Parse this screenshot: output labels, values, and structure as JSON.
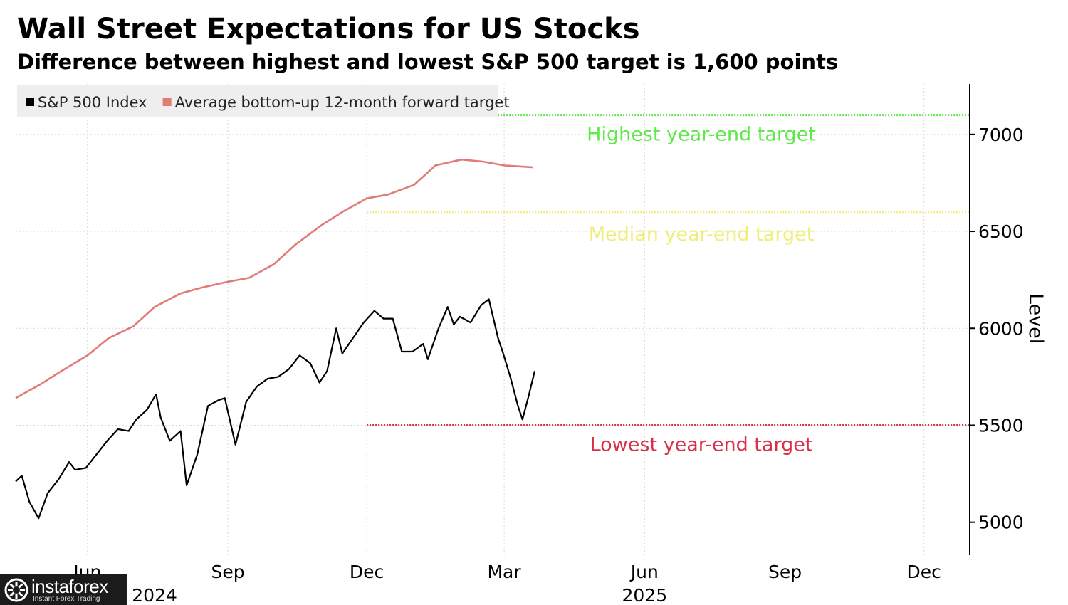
{
  "title": "Wall Street Expectations for US Stocks",
  "subtitle": "Difference between highest and lowest S&P 500 target is 1,600 points",
  "logo": {
    "name": "instaforex",
    "tagline": "Instant Forex Trading"
  },
  "chart_data": {
    "type": "line",
    "ylabel": "Level",
    "ylim": [
      4830,
      7260
    ],
    "y_ticks": [
      5000,
      5500,
      6000,
      6500,
      7000
    ],
    "x_ticks": [
      {
        "label": "Jun",
        "date": "2024-06-01"
      },
      {
        "label": "Sep",
        "date": "2024-09-01"
      },
      {
        "label": "Dec",
        "date": "2024-12-01"
      },
      {
        "label": "Mar",
        "date": "2025-03-01"
      },
      {
        "label": "Jun",
        "date": "2025-06-01"
      },
      {
        "label": "Sep",
        "date": "2025-09-01"
      },
      {
        "label": "Dec",
        "date": "2025-12-01"
      }
    ],
    "year_labels": [
      {
        "label": "2024",
        "date": "2024-07-15"
      },
      {
        "label": "2025",
        "date": "2025-06-01"
      }
    ],
    "xlim": [
      "2024-04-15",
      "2025-12-31"
    ],
    "grid": true,
    "legend_position": "top-left",
    "colors": {
      "sp500": "#000000",
      "target": "#e07b78",
      "highest": "#5ee84a",
      "median": "#f0ee7a",
      "lowest": "#d9304a"
    },
    "series": [
      {
        "name": "S&P 500 Index",
        "x": [
          "2024-04-15",
          "2024-04-19",
          "2024-04-24",
          "2024-04-30",
          "2024-05-06",
          "2024-05-13",
          "2024-05-20",
          "2024-05-24",
          "2024-05-31",
          "2024-06-07",
          "2024-06-14",
          "2024-06-21",
          "2024-06-28",
          "2024-07-03",
          "2024-07-10",
          "2024-07-16",
          "2024-07-19",
          "2024-07-25",
          "2024-08-01",
          "2024-08-05",
          "2024-08-12",
          "2024-08-19",
          "2024-08-26",
          "2024-08-30",
          "2024-09-06",
          "2024-09-13",
          "2024-09-20",
          "2024-09-27",
          "2024-10-04",
          "2024-10-11",
          "2024-10-18",
          "2024-10-25",
          "2024-10-31",
          "2024-11-05",
          "2024-11-11",
          "2024-11-15",
          "2024-11-22",
          "2024-11-29",
          "2024-12-06",
          "2024-12-12",
          "2024-12-18",
          "2024-12-24",
          "2024-12-31",
          "2025-01-07",
          "2025-01-10",
          "2025-01-17",
          "2025-01-23",
          "2025-01-27",
          "2025-01-31",
          "2025-02-07",
          "2025-02-14",
          "2025-02-19",
          "2025-02-25",
          "2025-02-28",
          "2025-03-05",
          "2025-03-10",
          "2025-03-13",
          "2025-03-17",
          "2025-03-21"
        ],
        "values": [
          5210,
          5240,
          5105,
          5020,
          5150,
          5220,
          5310,
          5270,
          5280,
          5350,
          5420,
          5480,
          5470,
          5530,
          5580,
          5660,
          5540,
          5420,
          5470,
          5190,
          5350,
          5600,
          5630,
          5640,
          5400,
          5620,
          5700,
          5740,
          5750,
          5790,
          5860,
          5820,
          5720,
          5780,
          6000,
          5870,
          5950,
          6030,
          6090,
          6050,
          6050,
          5880,
          5880,
          5920,
          5840,
          6000,
          6110,
          6020,
          6060,
          6030,
          6120,
          6150,
          5950,
          5880,
          5750,
          5600,
          5530,
          5650,
          5780
        ]
      },
      {
        "name": "Average bottom-up 12-month forward target",
        "x": [
          "2024-04-15",
          "2024-05-01",
          "2024-05-15",
          "2024-06-01",
          "2024-06-15",
          "2024-07-01",
          "2024-07-15",
          "2024-08-01",
          "2024-08-15",
          "2024-09-01",
          "2024-09-15",
          "2024-10-01",
          "2024-10-15",
          "2024-11-01",
          "2024-11-15",
          "2024-12-01",
          "2024-12-15",
          "2025-01-01",
          "2025-01-15",
          "2025-02-01",
          "2025-02-15",
          "2025-03-01",
          "2025-03-20"
        ],
        "values": [
          5640,
          5710,
          5780,
          5860,
          5950,
          6010,
          6110,
          6180,
          6210,
          6240,
          6260,
          6330,
          6430,
          6530,
          6600,
          6670,
          6690,
          6740,
          6840,
          6870,
          6860,
          6840,
          6830
        ]
      }
    ],
    "reference_lines": [
      {
        "name": "Highest year-end target",
        "value": 7100,
        "start": "2024-12-01",
        "color": "#5ee84a"
      },
      {
        "name": "Median year-end target",
        "value": 6600,
        "start": "2024-12-01",
        "color": "#f0ee7a"
      },
      {
        "name": "Lowest year-end target",
        "value": 5500,
        "start": "2024-12-01",
        "color": "#d9304a"
      }
    ]
  }
}
